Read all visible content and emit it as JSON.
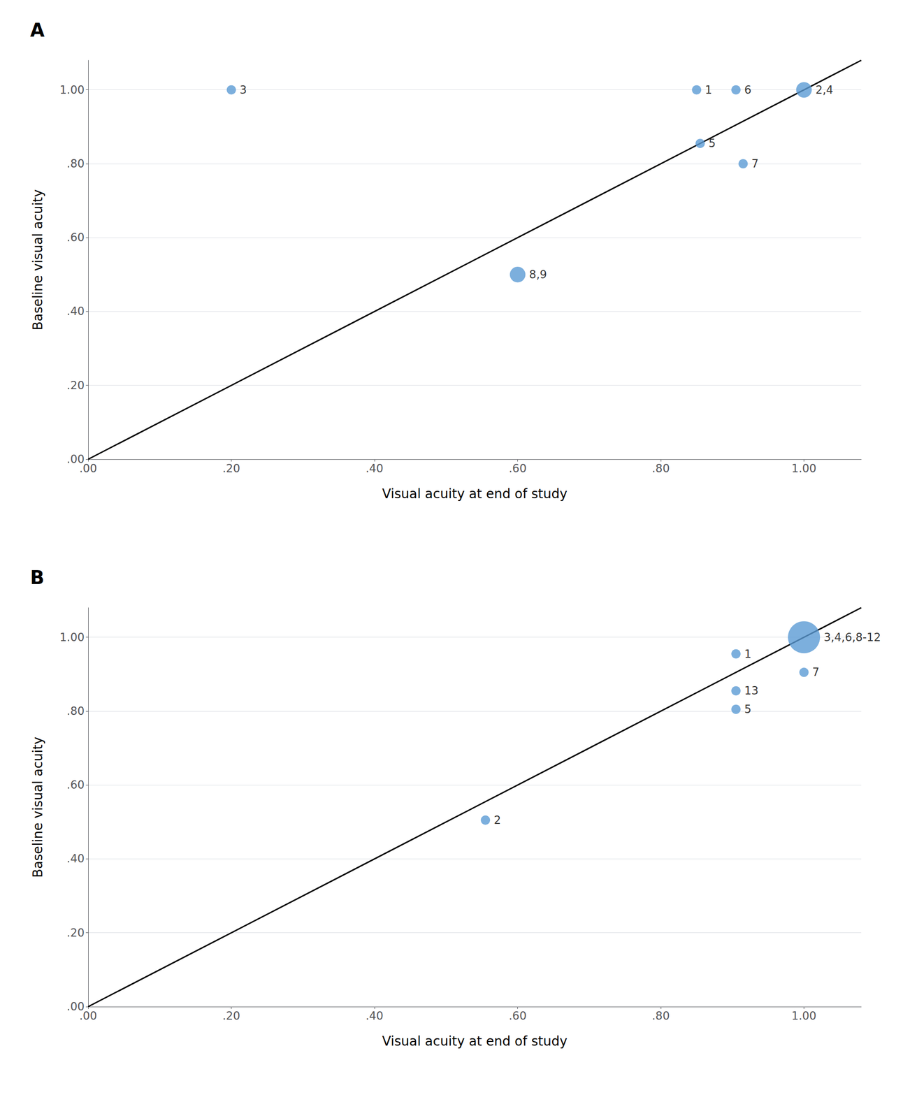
{
  "chart_data": [
    {
      "type": "scatter",
      "title": "A",
      "x_label": "Visual acuity at end of study",
      "y_label": "Baseline visual acuity",
      "xlim": [
        0.0,
        1.08
      ],
      "ylim": [
        0.0,
        1.08
      ],
      "xticks": [
        {
          "value": 0.0,
          "label": ".00"
        },
        {
          "value": 0.2,
          "label": ".20"
        },
        {
          "value": 0.4,
          "label": ".40"
        },
        {
          "value": 0.6,
          "label": ".60"
        },
        {
          "value": 0.8,
          "label": ".80"
        },
        {
          "value": 1.0,
          "label": "1.00"
        }
      ],
      "yticks": [
        {
          "value": 0.0,
          "label": ".00"
        },
        {
          "value": 0.2,
          "label": ".20"
        },
        {
          "value": 0.4,
          "label": ".40"
        },
        {
          "value": 0.6,
          "label": ".60"
        },
        {
          "value": 0.8,
          "label": ".80"
        },
        {
          "value": 1.0,
          "label": "1.00"
        }
      ],
      "grid": "y",
      "series": [
        {
          "type": "scatter",
          "color": "#5B9BD5",
          "x": [
            0.2,
            0.85,
            0.905,
            1.0,
            0.855,
            0.915,
            0.6
          ],
          "values": [
            1.0,
            1.0,
            1.0,
            1.0,
            0.855,
            0.8,
            0.5
          ],
          "labels": [
            "3",
            "1",
            "6",
            "2,4",
            "5",
            "7",
            "8,9"
          ],
          "sizes": [
            1,
            1,
            1,
            2,
            1,
            1,
            2
          ]
        },
        {
          "type": "line",
          "color": "black",
          "x": [
            0.0,
            1.08
          ],
          "values": [
            0.0,
            1.08
          ]
        }
      ]
    },
    {
      "type": "scatter",
      "title": "B",
      "x_label": "Visual acuity at end of study",
      "y_label": "Baseline visual acuity",
      "xlim": [
        0.0,
        1.08
      ],
      "ylim": [
        0.0,
        1.08
      ],
      "xticks": [
        {
          "value": 0.0,
          "label": ".00"
        },
        {
          "value": 0.2,
          "label": ".20"
        },
        {
          "value": 0.4,
          "label": ".40"
        },
        {
          "value": 0.6,
          "label": ".60"
        },
        {
          "value": 0.8,
          "label": ".80"
        },
        {
          "value": 1.0,
          "label": "1.00"
        }
      ],
      "yticks": [
        {
          "value": 0.0,
          "label": ".00"
        },
        {
          "value": 0.2,
          "label": ".20"
        },
        {
          "value": 0.4,
          "label": ".40"
        },
        {
          "value": 0.6,
          "label": ".60"
        },
        {
          "value": 0.8,
          "label": ".80"
        },
        {
          "value": 1.0,
          "label": "1.00"
        }
      ],
      "grid": "y",
      "series": [
        {
          "type": "scatter",
          "color": "#5B9BD5",
          "x": [
            1.0,
            0.905,
            1.0,
            0.905,
            0.905,
            0.555
          ],
          "values": [
            1.0,
            0.955,
            0.905,
            0.855,
            0.805,
            0.505
          ],
          "labels": [
            "3,4,6,8-12",
            "1",
            "7",
            "13",
            "5",
            "2"
          ],
          "sizes": [
            7,
            1,
            1,
            1,
            1,
            1
          ]
        },
        {
          "type": "line",
          "color": "black",
          "x": [
            0.0,
            1.08
          ],
          "values": [
            0.0,
            1.08
          ]
        }
      ]
    }
  ]
}
